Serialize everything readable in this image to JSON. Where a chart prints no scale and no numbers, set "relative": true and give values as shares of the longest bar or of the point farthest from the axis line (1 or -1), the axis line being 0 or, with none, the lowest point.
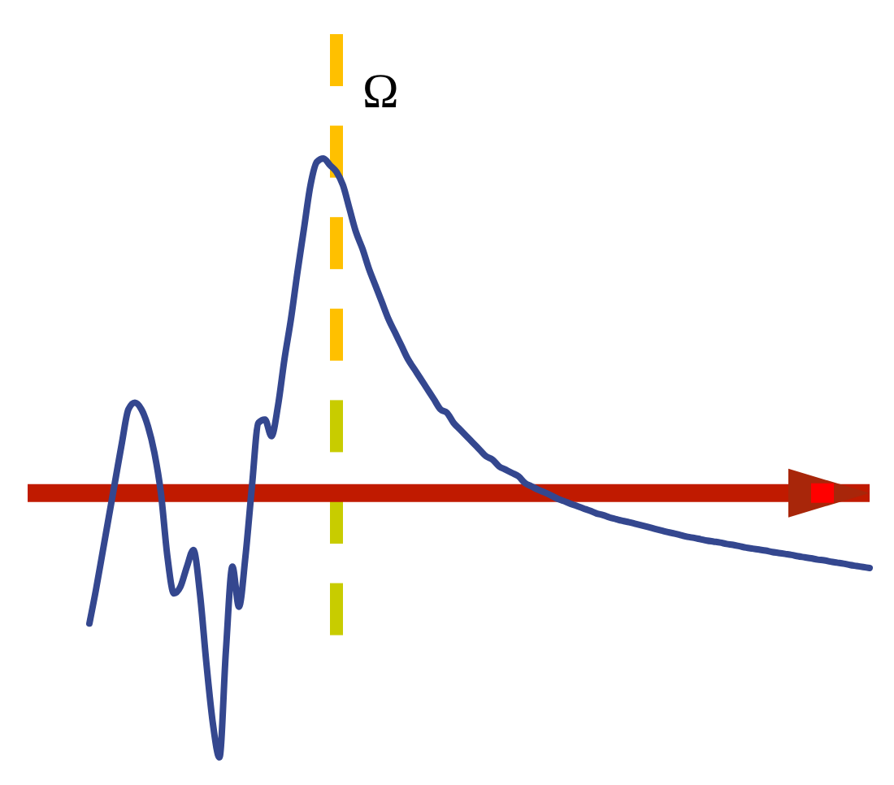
{
  "chart_data": {
    "type": "line",
    "relative": true,
    "categories": [
      null,
      null,
      null,
      null,
      null,
      null,
      null,
      null,
      null,
      null,
      null,
      null,
      null,
      null,
      null,
      null,
      null,
      null,
      null,
      null,
      null,
      null,
      null,
      null,
      null,
      null,
      null,
      null,
      null,
      null,
      null,
      null,
      null,
      null,
      null,
      null,
      null,
      null,
      null,
      null,
      null,
      null,
      null,
      null,
      null,
      null,
      null,
      null,
      null,
      null,
      null,
      null,
      null,
      null,
      null,
      null,
      null,
      null,
      null,
      null,
      null,
      null,
      null,
      null,
      null,
      null,
      null,
      null,
      null,
      null,
      null,
      null,
      null,
      null,
      null,
      null,
      null,
      null,
      null,
      null,
      null,
      null,
      null,
      null,
      null,
      null,
      null,
      null,
      null,
      null,
      null,
      null,
      null,
      null,
      null,
      null,
      null,
      null,
      null,
      null,
      null,
      null,
      null,
      null,
      null,
      null,
      null,
      null,
      null,
      null,
      null,
      null,
      null,
      null,
      null,
      null,
      null,
      null,
      null,
      null,
      null
    ],
    "series": [
      {
        "color": "#34478f",
        "values": [
          -0.39,
          -0.29,
          -0.18,
          -0.07,
          0.04,
          0.15,
          0.25,
          0.27,
          0.25,
          0.2,
          0.12,
          0.0,
          -0.19,
          -0.3,
          -0.28,
          -0.22,
          -0.17,
          -0.3,
          -0.51,
          -0.69,
          -0.79,
          -0.47,
          -0.22,
          -0.34,
          -0.19,
          0.02,
          0.21,
          0.22,
          0.17,
          0.26,
          0.4,
          0.52,
          0.66,
          0.79,
          0.92,
          0.99,
          1,
          0.98,
          0.96,
          0.92,
          0.85,
          0.78,
          0.73,
          0.67,
          0.62,
          0.57,
          0.52,
          0.48,
          0.44,
          0.4,
          0.37,
          0.34,
          0.31,
          0.28,
          0.25,
          0.24,
          0.21,
          0.19,
          0.17,
          0.15,
          0.13,
          0.11,
          0.1,
          0.08,
          0.07,
          0.06,
          0.05,
          0.03,
          0.02,
          0.01,
          0.002,
          -0.007,
          -0.017,
          -0.024,
          -0.032,
          -0.039,
          -0.046,
          -0.053,
          -0.061,
          -0.066,
          -0.073,
          -0.078,
          -0.083,
          -0.087,
          -0.092,
          -0.097,
          -0.102,
          -0.107,
          -0.112,
          -0.117,
          -0.121,
          -0.126,
          -0.131,
          -0.134,
          -0.138,
          -0.142,
          -0.145,
          -0.148,
          -0.152,
          -0.155,
          -0.159,
          -0.163,
          -0.166,
          -0.169,
          -0.172,
          -0.176,
          -0.179,
          -0.182,
          -0.185,
          -0.189,
          -0.192,
          -0.195,
          -0.199,
          -0.201,
          -0.205,
          -0.208,
          -0.211,
          -0.215,
          -0.218,
          -0.221,
          -0.224
        ]
      }
    ],
    "ref_lines": [
      {
        "axis": "y",
        "value": 0,
        "color": "#c01a00"
      }
    ],
    "annotations": [
      "Ω"
    ]
  }
}
